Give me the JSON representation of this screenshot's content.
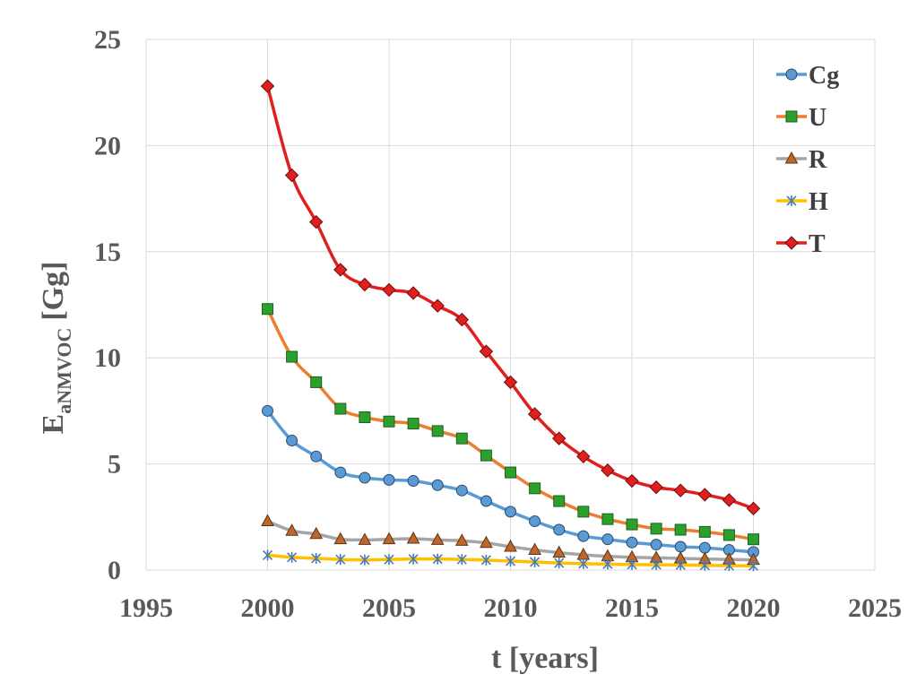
{
  "chart_data": {
    "type": "line",
    "title": "",
    "xlabel": "t [years]",
    "ylabel": {
      "main": "E",
      "subscript": "aNMVOC",
      "unit": "[Gg]"
    },
    "xlim": [
      1995,
      2025
    ],
    "ylim": [
      0,
      25
    ],
    "xticks": [
      1995,
      2000,
      2005,
      2010,
      2015,
      2020,
      2025
    ],
    "yticks": [
      0,
      5,
      10,
      15,
      20,
      25
    ],
    "grid": true,
    "legend_position": "top-right",
    "x": [
      2000,
      2001,
      2002,
      2003,
      2004,
      2005,
      2006,
      2007,
      2008,
      2009,
      2010,
      2011,
      2012,
      2013,
      2014,
      2015,
      2016,
      2017,
      2018,
      2019,
      2020
    ],
    "series": [
      {
        "name": "Cg",
        "color": "#5B9BD5",
        "marker": "circle",
        "values": [
          7.5,
          6.1,
          5.35,
          4.6,
          4.35,
          4.25,
          4.2,
          4.0,
          3.75,
          3.25,
          2.75,
          2.3,
          1.9,
          1.6,
          1.45,
          1.3,
          1.2,
          1.1,
          1.05,
          0.95,
          0.85
        ]
      },
      {
        "name": "U",
        "color": "#ED7D31",
        "marker": "square",
        "values": [
          12.3,
          10.05,
          8.85,
          7.6,
          7.2,
          7.0,
          6.9,
          6.55,
          6.2,
          5.4,
          4.6,
          3.85,
          3.25,
          2.75,
          2.4,
          2.15,
          1.95,
          1.9,
          1.8,
          1.65,
          1.45
        ]
      },
      {
        "name": "R",
        "color": "#A5A5A5",
        "marker": "triangle",
        "values": [
          2.3,
          1.85,
          1.7,
          1.45,
          1.42,
          1.45,
          1.48,
          1.42,
          1.38,
          1.28,
          1.1,
          0.95,
          0.82,
          0.72,
          0.65,
          0.6,
          0.58,
          0.55,
          0.52,
          0.5,
          0.48
        ]
      },
      {
        "name": "H",
        "color": "#FFC000",
        "marker": "asterisk",
        "values": [
          0.7,
          0.6,
          0.55,
          0.5,
          0.48,
          0.5,
          0.52,
          0.52,
          0.5,
          0.47,
          0.42,
          0.38,
          0.33,
          0.3,
          0.28,
          0.26,
          0.25,
          0.24,
          0.22,
          0.21,
          0.2
        ]
      },
      {
        "name": "T",
        "color": "#E01F1F",
        "marker": "diamond",
        "values": [
          22.8,
          18.6,
          16.4,
          14.15,
          13.45,
          13.2,
          13.05,
          12.45,
          11.8,
          10.3,
          8.85,
          7.35,
          6.2,
          5.35,
          4.7,
          4.2,
          3.9,
          3.75,
          3.55,
          3.3,
          2.9
        ]
      }
    ]
  }
}
